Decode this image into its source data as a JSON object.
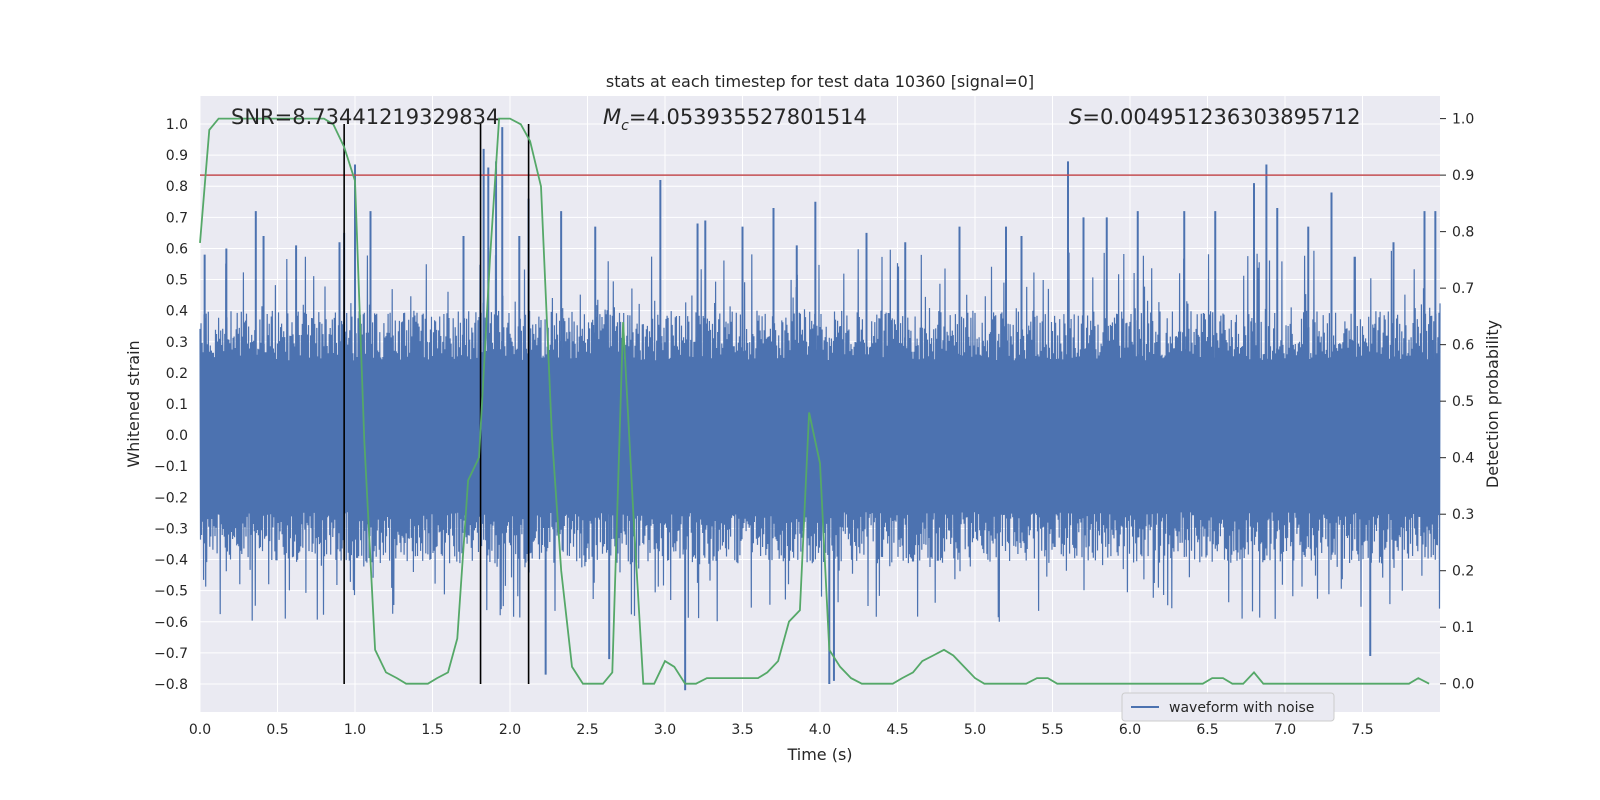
{
  "chart_data": {
    "type": "line",
    "title": "stats at each timestep for test data 10360 [signal=0]",
    "xlabel": "Time (s)",
    "ylabel": "Whitened strain",
    "ylabel_right": "Detection probability",
    "xlim": [
      0.0,
      8.0
    ],
    "ylim": [
      -0.89,
      1.09
    ],
    "ylim_right": [
      -0.05,
      1.04
    ],
    "x_ticks": [
      "0.0",
      "0.5",
      "1.0",
      "1.5",
      "2.0",
      "2.5",
      "3.0",
      "3.5",
      "4.0",
      "4.5",
      "5.0",
      "5.5",
      "6.0",
      "6.5",
      "7.0",
      "7.5"
    ],
    "y_ticks": [
      "1.0",
      "0.9",
      "0.8",
      "0.7",
      "0.6",
      "0.5",
      "0.4",
      "0.3",
      "0.2",
      "0.1",
      "0.0",
      "−0.1",
      "−0.2",
      "−0.3",
      "−0.4",
      "−0.5",
      "−0.6",
      "−0.7",
      "−0.8"
    ],
    "y_ticks_right": [
      "1.0",
      "0.9",
      "0.8",
      "0.7",
      "0.6",
      "0.5",
      "0.4",
      "0.3",
      "0.2",
      "0.1",
      "0.0"
    ],
    "annotations": {
      "snr": "SNR=8.73441219329834",
      "mc_prefix": "M",
      "mc_sub": "c",
      "mc_value": "=4.053935527801514",
      "s_prefix": "S",
      "s_value": "=0.004951236303895712"
    },
    "legend": {
      "label": "waveform with noise",
      "placement": "lower-right"
    },
    "threshold": {
      "value": 0.9,
      "axis": "right",
      "color": "#c44e52"
    },
    "vertical_lines": [
      0.93,
      1.81,
      2.12
    ],
    "vertical_line_range": [
      -0.8,
      1.0
    ],
    "colors": {
      "waveform": "#4c72b0",
      "probability": "#55a868",
      "threshold": "#c44e52",
      "vlines": "#000000",
      "background": "#eaeaf2",
      "grid": "#ffffff"
    },
    "series": [
      {
        "axis": "right",
        "color": "#55a868",
        "x": [
          0.0,
          0.06,
          0.12,
          0.2,
          0.3,
          0.4,
          0.5,
          0.6,
          0.7,
          0.8,
          0.86,
          0.93,
          1.0,
          1.06,
          1.13,
          1.2,
          1.27,
          1.33,
          1.4,
          1.47,
          1.53,
          1.6,
          1.66,
          1.73,
          1.8,
          1.87,
          1.93,
          2.0,
          2.07,
          2.13,
          2.2,
          2.27,
          2.33,
          2.4,
          2.47,
          2.53,
          2.6,
          2.66,
          2.73,
          2.8,
          2.86,
          2.93,
          3.0,
          3.06,
          3.13,
          3.2,
          3.27,
          3.33,
          3.4,
          3.5,
          3.6,
          3.66,
          3.73,
          3.8,
          3.87,
          3.93,
          4.0,
          4.06,
          4.13,
          4.2,
          4.27,
          4.33,
          4.4,
          4.47,
          4.53,
          4.6,
          4.66,
          4.73,
          4.8,
          4.86,
          4.93,
          5.0,
          5.06,
          5.13,
          5.2,
          5.27,
          5.33,
          5.4,
          5.47,
          5.53,
          5.6,
          5.66,
          5.73,
          5.8,
          5.86,
          5.93,
          6.0,
          6.1,
          6.2,
          6.3,
          6.4,
          6.47,
          6.53,
          6.6,
          6.66,
          6.73,
          6.8,
          6.86,
          6.93,
          7.0,
          7.1,
          7.2,
          7.3,
          7.4,
          7.5,
          7.6,
          7.7,
          7.8,
          7.86,
          7.93
        ],
        "values": [
          0.78,
          0.98,
          1.0,
          1.0,
          1.0,
          1.0,
          1.0,
          1.0,
          1.0,
          1.0,
          0.99,
          0.95,
          0.89,
          0.43,
          0.06,
          0.02,
          0.01,
          0.0,
          0.0,
          0.0,
          0.01,
          0.02,
          0.08,
          0.36,
          0.4,
          0.75,
          1.0,
          1.0,
          0.99,
          0.96,
          0.88,
          0.44,
          0.2,
          0.03,
          0.0,
          0.0,
          0.0,
          0.02,
          0.64,
          0.28,
          0.0,
          0.0,
          0.04,
          0.03,
          0.0,
          0.0,
          0.01,
          0.01,
          0.01,
          0.01,
          0.01,
          0.02,
          0.04,
          0.11,
          0.13,
          0.48,
          0.39,
          0.06,
          0.03,
          0.01,
          0.0,
          0.0,
          0.0,
          0.0,
          0.01,
          0.02,
          0.04,
          0.05,
          0.06,
          0.05,
          0.03,
          0.01,
          0.0,
          0.0,
          0.0,
          0.0,
          0.0,
          0.01,
          0.01,
          0.0,
          0.0,
          0.0,
          0.0,
          0.0,
          0.0,
          0.0,
          0.0,
          0.0,
          0.0,
          0.0,
          0.0,
          0.0,
          0.01,
          0.01,
          0.0,
          0.0,
          0.02,
          0.0,
          0.0,
          0.0,
          0.0,
          0.0,
          0.0,
          0.0,
          0.0,
          0.0,
          0.0,
          0.0,
          0.01,
          0.0
        ]
      },
      {
        "name": "waveform with noise",
        "axis": "left",
        "color": "#4c72b0",
        "description_values": "dense noise trace; base envelope amplitude and notable peaks below",
        "noise_envelope": [
          0.32,
          -0.33
        ],
        "peaks_x": [
          0.03,
          0.17,
          0.36,
          0.41,
          0.62,
          0.9,
          0.93,
          1.0,
          1.1,
          1.7,
          1.83,
          1.86,
          1.91,
          1.95,
          2.06,
          2.12,
          2.23,
          2.33,
          2.55,
          2.64,
          2.97,
          3.13,
          3.21,
          3.26,
          3.5,
          3.7,
          3.85,
          3.97,
          4.06,
          4.09,
          4.3,
          4.55,
          4.9,
          5.2,
          5.3,
          5.6,
          5.7,
          5.85,
          6.05,
          6.35,
          6.55,
          6.8,
          6.88,
          6.95,
          7.15,
          7.3,
          7.55,
          7.7,
          7.9,
          7.97
        ],
        "peaks_y": [
          0.58,
          0.6,
          0.72,
          0.64,
          0.61,
          0.62,
          0.65,
          0.87,
          0.72,
          0.64,
          0.92,
          0.86,
          0.88,
          0.99,
          0.64,
          0.76,
          -0.77,
          0.72,
          0.67,
          -0.72,
          0.82,
          -0.82,
          0.68,
          0.69,
          0.67,
          0.73,
          0.61,
          0.75,
          -0.8,
          -0.79,
          0.65,
          0.62,
          0.67,
          0.67,
          0.64,
          0.88,
          0.7,
          0.7,
          0.72,
          0.72,
          0.72,
          0.81,
          0.87,
          0.73,
          0.67,
          0.78,
          -0.71,
          0.62,
          0.72,
          0.72
        ]
      }
    ]
  }
}
